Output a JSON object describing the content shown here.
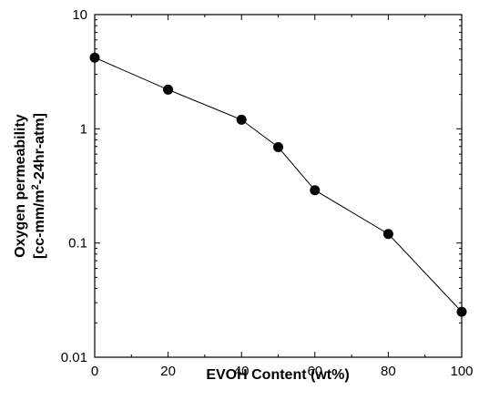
{
  "chart_data": {
    "type": "line",
    "xlabel": "EVOH Content (wt%)",
    "ylabel": {
      "line1": "Oxygen permeability",
      "line2_pre": "[cc-mm/m",
      "line2_sup": "2",
      "line2_post": "-24hr-atm]"
    },
    "xlim": [
      0,
      100
    ],
    "ylim": [
      0.01,
      10
    ],
    "yscale": "log",
    "grid": false,
    "x_ticks": [
      0,
      20,
      40,
      60,
      80,
      100
    ],
    "x_tick_labels": [
      "0",
      "20",
      "40",
      "60",
      "80",
      "100"
    ],
    "y_ticks": [
      0.01,
      0.1,
      1,
      10
    ],
    "y_tick_labels": [
      "0.01",
      "0.1",
      "1",
      "10"
    ],
    "series": [
      {
        "x": [
          0,
          20,
          40,
          50,
          60,
          80,
          100
        ],
        "y": [
          4.2,
          2.2,
          1.2,
          0.69,
          0.29,
          0.12,
          0.025
        ],
        "color": "#000000",
        "marker": "circle"
      }
    ]
  }
}
